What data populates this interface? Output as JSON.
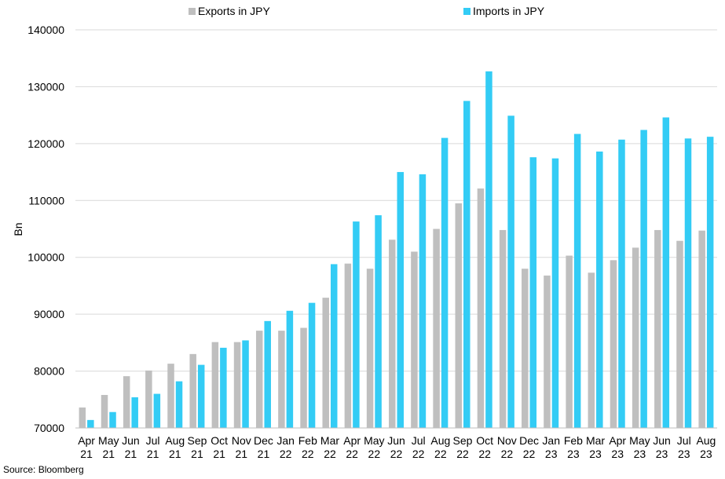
{
  "source": "Source: Bloomberg",
  "chart_data": {
    "type": "bar",
    "title": "",
    "xlabel": "",
    "ylabel": "Bn",
    "ylim": [
      70000,
      140000
    ],
    "yticks": [
      70000,
      80000,
      90000,
      100000,
      110000,
      120000,
      130000,
      140000
    ],
    "grid": true,
    "legend_position": "top",
    "categories": [
      [
        "Apr",
        "21"
      ],
      [
        "May",
        "21"
      ],
      [
        "Jun",
        "21"
      ],
      [
        "Jul",
        "21"
      ],
      [
        "Aug",
        "21"
      ],
      [
        "Sep",
        "21"
      ],
      [
        "Oct",
        "21"
      ],
      [
        "Nov",
        "21"
      ],
      [
        "Dec",
        "21"
      ],
      [
        "Jan",
        "22"
      ],
      [
        "Feb",
        "22"
      ],
      [
        "Mar",
        "22"
      ],
      [
        "Apr",
        "22"
      ],
      [
        "May",
        "22"
      ],
      [
        "Jun",
        "22"
      ],
      [
        "Jul",
        "22"
      ],
      [
        "Aug",
        "22"
      ],
      [
        "Sep",
        "22"
      ],
      [
        "Oct",
        "22"
      ],
      [
        "Nov",
        "22"
      ],
      [
        "Dec",
        "22"
      ],
      [
        "Jan",
        "23"
      ],
      [
        "Feb",
        "23"
      ],
      [
        "Mar",
        "23"
      ],
      [
        "Apr",
        "23"
      ],
      [
        "May",
        "23"
      ],
      [
        "Jun",
        "23"
      ],
      [
        "Jul",
        "23"
      ],
      [
        "Aug",
        "23"
      ]
    ],
    "series": [
      {
        "name": "Exports in JPY",
        "color": "#bfbfbf",
        "values": [
          73600,
          75800,
          79100,
          80100,
          81300,
          83000,
          85100,
          85100,
          87100,
          87100,
          87600,
          92900,
          98900,
          98000,
          103100,
          101000,
          105000,
          109500,
          112100,
          104800,
          98000,
          96800,
          100300,
          97300,
          99500,
          101700,
          104800,
          102900,
          104700
        ]
      },
      {
        "name": "Imports in JPY",
        "color": "#33ccf5",
        "values": [
          71400,
          72800,
          75400,
          76000,
          78200,
          81100,
          84100,
          85400,
          88800,
          90600,
          92000,
          98800,
          106300,
          107400,
          115000,
          114600,
          121000,
          127500,
          132700,
          124900,
          117600,
          117400,
          121700,
          118600,
          120700,
          122400,
          124600,
          120900,
          121200
        ]
      }
    ]
  }
}
